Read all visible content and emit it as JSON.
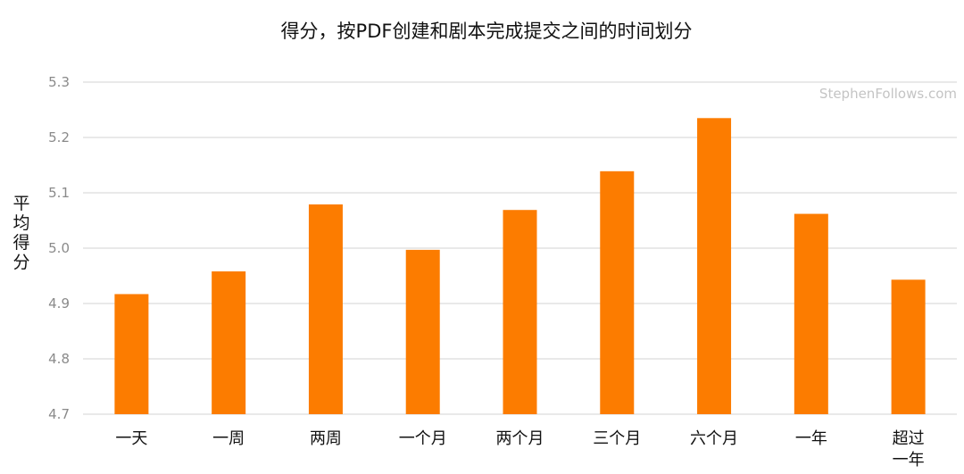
{
  "chart_data": {
    "type": "bar",
    "title": "得分，按PDF创建和剧本完成提交之间的时间划分",
    "watermark": "StephenFollows.com",
    "xlabel": "",
    "ylabel": "平均得分",
    "ylim": [
      4.7,
      5.3
    ],
    "yticks": [
      "5.3",
      "5.2",
      "5.1",
      "5.0",
      "4.9",
      "4.8",
      "4.7"
    ],
    "categories": [
      "一天",
      "一周",
      "两周",
      "一个月",
      "两个月",
      "三个月",
      "六个月",
      "一年",
      "超过一年"
    ],
    "values": [
      4.917,
      4.958,
      5.079,
      4.997,
      5.069,
      5.139,
      5.235,
      5.062,
      4.943
    ],
    "bar_color": "#fc7c00",
    "grid": true,
    "legend": "none"
  }
}
